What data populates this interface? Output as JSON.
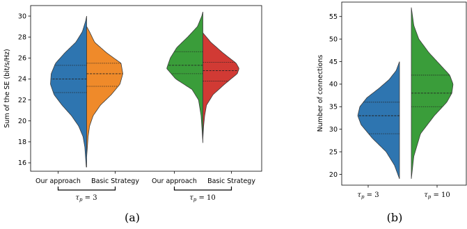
{
  "chart_data": [
    {
      "type": "violin",
      "split": true,
      "caption": "(a)",
      "ylabel": "Sum of the SE (bit/s/Hz)",
      "ylim": [
        15.2,
        31
      ],
      "yticks": [
        16,
        18,
        20,
        22,
        24,
        26,
        28,
        30
      ],
      "ytick_labels": [
        "16",
        "18",
        "20",
        "22",
        "24",
        "26",
        "28",
        "30"
      ],
      "groups": [
        {
          "name": "τ_p = 3",
          "label_main": "τ",
          "label_sub": "p",
          "label_rest": " = 3"
        },
        {
          "name": "τ_p = 10",
          "label_main": "τ",
          "label_sub": "p",
          "label_rest": " = 10"
        }
      ],
      "series": [
        {
          "name": "Our approach",
          "group": 0,
          "side": "left",
          "color": "#2e75b0",
          "range": [
            15.6,
            30.0
          ],
          "quartiles": [
            22.7,
            24.0,
            25.3
          ],
          "profile": [
            [
              15.6,
              0.01
            ],
            [
              16.5,
              0.03
            ],
            [
              17.5,
              0.05
            ],
            [
              18.5,
              0.1
            ],
            [
              19.5,
              0.22
            ],
            [
              20.5,
              0.42
            ],
            [
              21.5,
              0.68
            ],
            [
              22.5,
              0.9
            ],
            [
              23.5,
              1.0
            ],
            [
              24.5,
              0.98
            ],
            [
              25.5,
              0.86
            ],
            [
              26.5,
              0.6
            ],
            [
              27.5,
              0.3
            ],
            [
              28.5,
              0.12
            ],
            [
              29.5,
              0.03
            ],
            [
              30.0,
              0.0
            ]
          ]
        },
        {
          "name": "Basic Strategy",
          "group": 0,
          "side": "right",
          "color": "#ef8a2a",
          "range": [
            16.6,
            29.0
          ],
          "quartiles": [
            23.3,
            24.5,
            25.5
          ],
          "profile": [
            [
              16.6,
              0.0
            ],
            [
              17.5,
              0.02
            ],
            [
              18.5,
              0.04
            ],
            [
              19.5,
              0.08
            ],
            [
              20.5,
              0.18
            ],
            [
              21.5,
              0.38
            ],
            [
              22.5,
              0.68
            ],
            [
              23.5,
              0.92
            ],
            [
              24.5,
              1.0
            ],
            [
              25.5,
              0.95
            ],
            [
              26.5,
              0.55
            ],
            [
              27.5,
              0.22
            ],
            [
              28.5,
              0.08
            ],
            [
              29.0,
              0.0
            ]
          ]
        },
        {
          "name": "Our approach",
          "group": 1,
          "side": "left",
          "color": "#3a9d3a",
          "range": [
            17.9,
            30.4
          ],
          "quartiles": [
            24.5,
            25.3,
            26.6
          ],
          "profile": [
            [
              17.9,
              0.0
            ],
            [
              19.0,
              0.02
            ],
            [
              20.5,
              0.05
            ],
            [
              22.0,
              0.12
            ],
            [
              23.0,
              0.3
            ],
            [
              24.0,
              0.75
            ],
            [
              25.0,
              1.0
            ],
            [
              26.0,
              0.9
            ],
            [
              27.0,
              0.72
            ],
            [
              28.0,
              0.42
            ],
            [
              29.0,
              0.15
            ],
            [
              30.0,
              0.03
            ],
            [
              30.4,
              0.0
            ]
          ]
        },
        {
          "name": "Basic Strategy",
          "group": 1,
          "side": "right",
          "color": "#d13a34",
          "range": [
            18.3,
            28.4
          ],
          "quartiles": [
            23.8,
            24.8,
            25.6
          ],
          "profile": [
            [
              18.3,
              0.0
            ],
            [
              19.5,
              0.02
            ],
            [
              20.5,
              0.05
            ],
            [
              21.5,
              0.1
            ],
            [
              22.5,
              0.28
            ],
            [
              23.5,
              0.6
            ],
            [
              24.5,
              0.95
            ],
            [
              25.0,
              1.0
            ],
            [
              25.5,
              0.92
            ],
            [
              26.5,
              0.55
            ],
            [
              27.5,
              0.22
            ],
            [
              28.4,
              0.0
            ]
          ]
        }
      ],
      "xtick_labels": [
        "Our approach",
        "Basic Strategy",
        "Our approach",
        "Basic Strategy"
      ]
    },
    {
      "type": "violin",
      "split": true,
      "caption": "(b)",
      "ylabel": "Number of connections",
      "ylim": [
        17.6,
        58.2
      ],
      "yticks": [
        20,
        25,
        30,
        35,
        40,
        45,
        50,
        55
      ],
      "ytick_labels": [
        "20",
        "25",
        "30",
        "35",
        "40",
        "45",
        "50",
        "55"
      ],
      "xtick_labels": [
        {
          "main": "τ",
          "sub": "p",
          "rest": " = 3"
        },
        {
          "main": "τ",
          "sub": "p",
          "rest": " = 10"
        }
      ],
      "series": [
        {
          "name": "τ_p = 3",
          "side": "left",
          "color": "#2e75b0",
          "range": [
            19.0,
            45.0
          ],
          "quartiles": [
            29.0,
            33.0,
            36.0
          ],
          "profile": [
            [
              19,
              0.0
            ],
            [
              22,
              0.12
            ],
            [
              25,
              0.32
            ],
            [
              28,
              0.65
            ],
            [
              31,
              0.92
            ],
            [
              33,
              1.0
            ],
            [
              35,
              0.95
            ],
            [
              37,
              0.78
            ],
            [
              39,
              0.5
            ],
            [
              41,
              0.25
            ],
            [
              43,
              0.08
            ],
            [
              45,
              0.0
            ]
          ]
        },
        {
          "name": "τ_p = 10",
          "side": "right",
          "color": "#3a9d3a",
          "range": [
            19.0,
            57.0
          ],
          "quartiles": [
            35.0,
            38.0,
            42.0
          ],
          "profile": [
            [
              19,
              0.0
            ],
            [
              24,
              0.06
            ],
            [
              29,
              0.22
            ],
            [
              33,
              0.55
            ],
            [
              36,
              0.85
            ],
            [
              38,
              0.97
            ],
            [
              40,
              1.0
            ],
            [
              42,
              0.92
            ],
            [
              44,
              0.72
            ],
            [
              47,
              0.42
            ],
            [
              50,
              0.18
            ],
            [
              53,
              0.06
            ],
            [
              57,
              0.0
            ]
          ]
        }
      ]
    }
  ]
}
